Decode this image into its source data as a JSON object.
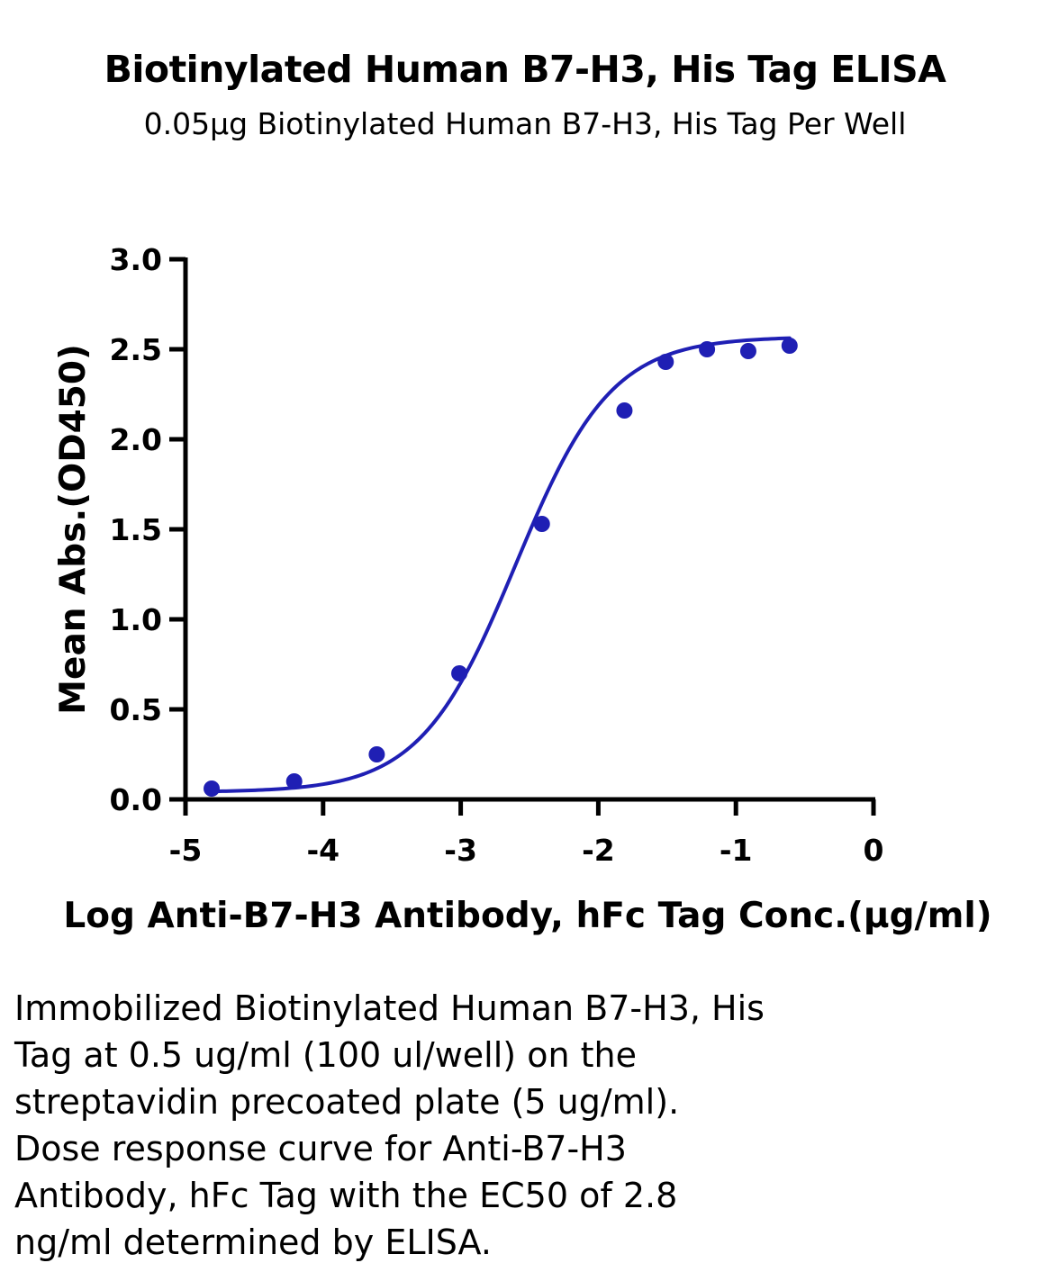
{
  "chart_data": {
    "type": "scatter",
    "title": "Biotinylated Human B7-H3, His Tag ELISA",
    "subtitle": "0.05μg Biotinylated Human B7-H3, His Tag Per Well",
    "xlabel": "Log Anti-B7-H3 Antibody, hFc Tag Conc.(μg/ml)",
    "ylabel": "Mean Abs.(OD450)",
    "xlim": [
      -5,
      0
    ],
    "ylim": [
      0,
      3.0
    ],
    "x_ticks": [
      "-5",
      "-4",
      "-3",
      "-2",
      "-1",
      "0"
    ],
    "y_ticks": [
      "0.0",
      "0.5",
      "1.0",
      "1.5",
      "2.0",
      "2.5",
      "3.0"
    ],
    "grid": false,
    "series": [
      {
        "x": [
          -4.81,
          -4.21,
          -3.61,
          -3.01,
          -2.41,
          -1.81,
          -1.51,
          -1.21,
          -0.91,
          -0.61
        ],
        "y": [
          0.06,
          0.1,
          0.25,
          0.7,
          1.53,
          2.16,
          2.43,
          2.5,
          2.49,
          2.52
        ],
        "color": "#1f1fb4",
        "fit_curve": "four-parameter logistic"
      }
    ],
    "fit": {
      "bottom": 0.04,
      "top": 2.57,
      "log_ec50": -2.6,
      "hill_slope": 1.25
    }
  },
  "caption": {
    "lines": [
      "Immobilized Biotinylated Human B7-H3, His",
      "Tag at 0.5 ug/ml (100 ul/well) on the",
      "streptavidin precoated plate (5 ug/ml).",
      "Dose response curve for Anti-B7-H3",
      "Antibody, hFc Tag with the EC50 of 2.8",
      "ng/ml determined by ELISA."
    ]
  }
}
